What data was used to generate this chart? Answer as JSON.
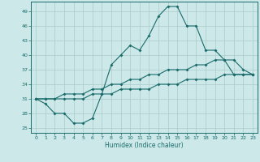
{
  "xlabel": "Humidex (Indice chaleur)",
  "xlim": [
    -0.5,
    23.5
  ],
  "ylim": [
    24,
    51
  ],
  "yticks": [
    25,
    28,
    31,
    34,
    37,
    40,
    43,
    46,
    49
  ],
  "xticks": [
    0,
    1,
    2,
    3,
    4,
    5,
    6,
    7,
    8,
    9,
    10,
    11,
    12,
    13,
    14,
    15,
    16,
    17,
    18,
    19,
    20,
    21,
    22,
    23
  ],
  "bg_color": "#cce8e8",
  "line_color": "#1a6b6b",
  "grid_color": "#aacccc",
  "line1_y": [
    31,
    30,
    28,
    28,
    26,
    26,
    27,
    32,
    38,
    40,
    42,
    41,
    44,
    48,
    50,
    50,
    46,
    46,
    41,
    41,
    39,
    39,
    37,
    36
  ],
  "line2_y": [
    31,
    31,
    31,
    32,
    32,
    32,
    33,
    33,
    34,
    34,
    35,
    35,
    36,
    36,
    37,
    37,
    37,
    38,
    38,
    39,
    39,
    36,
    36,
    36
  ],
  "line3_y": [
    31,
    31,
    31,
    31,
    31,
    31,
    32,
    32,
    32,
    33,
    33,
    33,
    33,
    34,
    34,
    34,
    35,
    35,
    35,
    35,
    36,
    36,
    36,
    36
  ]
}
